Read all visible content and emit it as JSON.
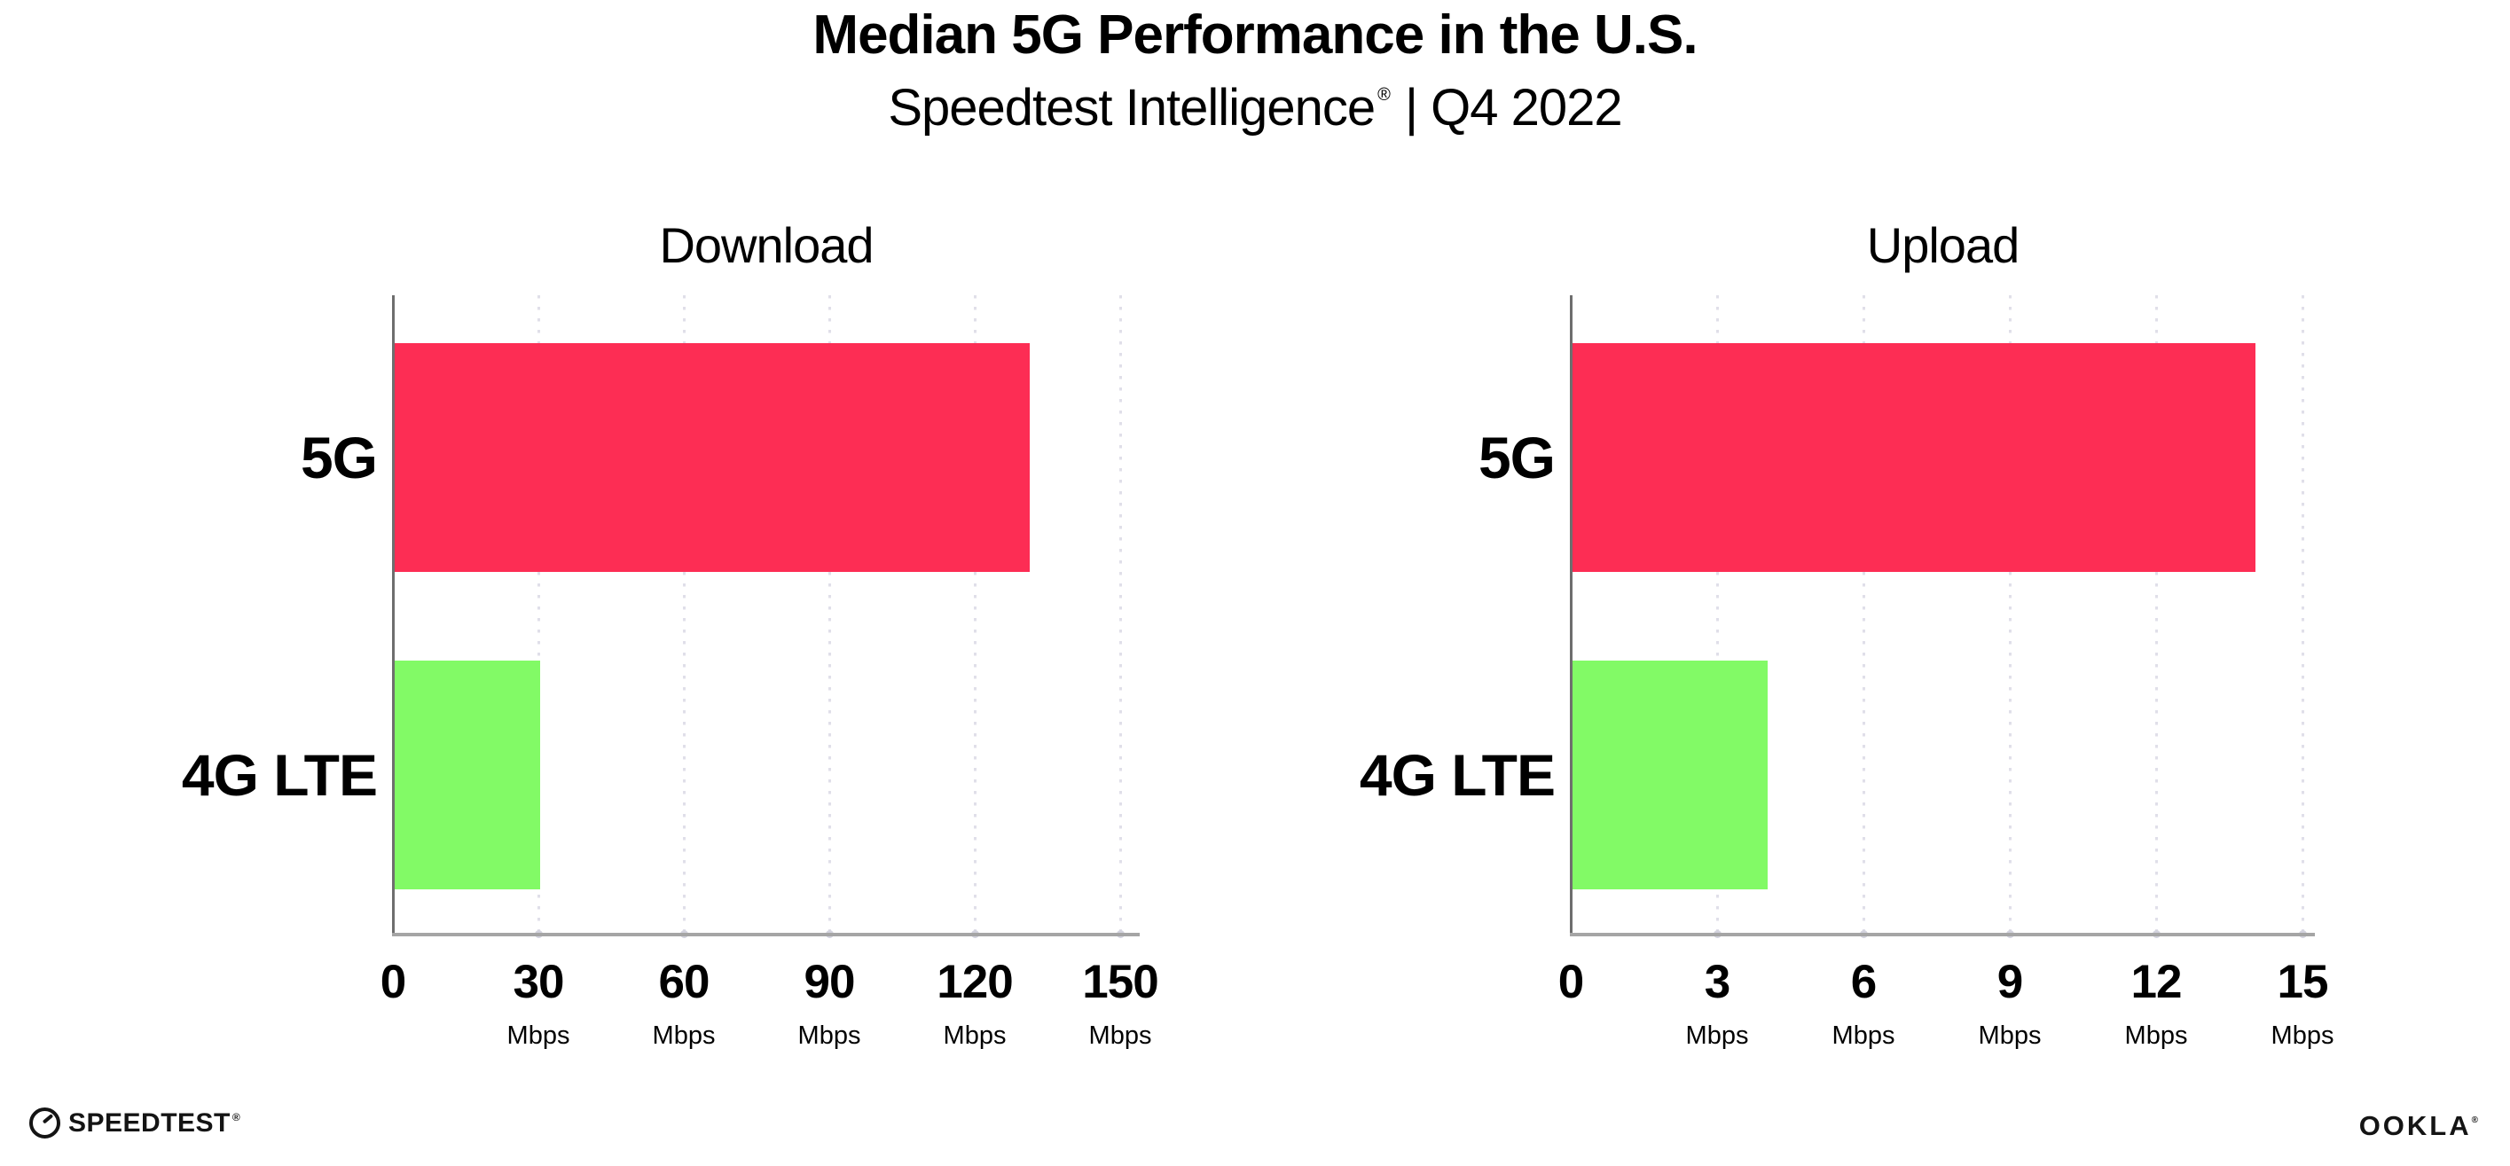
{
  "page": {
    "title": "Median 5G Performance in the U.S.",
    "subtitle_brand": "Speedtest Intelligence",
    "subtitle_registered_mark": "®",
    "subtitle_period": " | Q4 2022",
    "background": "#ffffff"
  },
  "palette": {
    "bar_5g": "#fd2d54",
    "bar_4g_lte": "#82fa66",
    "axis": "#a5a5a5",
    "gridline": "#e0dfe9",
    "text": "#000000"
  },
  "chart_data": [
    {
      "type": "bar",
      "orientation": "horizontal",
      "title": "Download",
      "categories": [
        "5G",
        "4G LTE"
      ],
      "values": [
        131,
        30
      ],
      "unit": "Mbps",
      "xlabel": "",
      "ylabel": "",
      "xlim": [
        0,
        150
      ],
      "ticks": [
        0,
        30,
        60,
        90,
        120,
        150
      ],
      "gridlines": "dotted vertical at each tick",
      "bar_colors": [
        "#fd2d54",
        "#82fa66"
      ]
    },
    {
      "type": "bar",
      "orientation": "horizontal",
      "title": "Upload",
      "categories": [
        "5G",
        "4G LTE"
      ],
      "values": [
        14,
        4
      ],
      "unit": "Mbps",
      "xlabel": "",
      "ylabel": "",
      "xlim": [
        0,
        15
      ],
      "ticks": [
        0,
        3,
        6,
        9,
        12,
        15
      ],
      "gridlines": "dotted vertical at each tick",
      "bar_colors": [
        "#fd2d54",
        "#82fa66"
      ]
    }
  ],
  "footer": {
    "speedtest_wordmark": "SPEEDTEST",
    "speedtest_trademark": "®",
    "ookla_wordmark": "OOKLA",
    "ookla_trademark": "®"
  }
}
